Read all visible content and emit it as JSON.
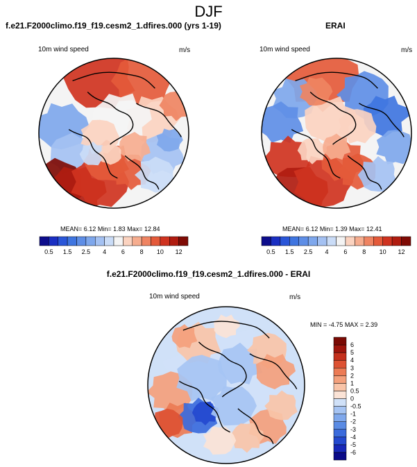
{
  "figure": {
    "title": "DJF"
  },
  "chart_data": [
    {
      "type": "heatmap",
      "projection": "north polar stereographic",
      "title": "f.e21.F2000climo.f19_f19.cesm2_1.dfires.000 (yrs 1-19)",
      "variable": "10m wind speed",
      "units": "m/s",
      "stats_labels": [
        "MEAN=",
        "Min=",
        "Max="
      ],
      "stats": [
        6.12,
        1.83,
        12.84
      ],
      "colorbar": {
        "orientation": "horizontal",
        "levels": [
          0.5,
          1,
          1.5,
          2,
          2.5,
          3,
          4,
          5,
          6,
          7,
          8,
          9,
          10,
          11,
          12
        ],
        "tick_labels": [
          "0.5",
          "1.5",
          "2.5",
          "4",
          "6",
          "8",
          "10",
          "12"
        ],
        "colors": [
          "#0d0d8c",
          "#1a2fc2",
          "#2a56d8",
          "#3f75e0",
          "#5e8ee6",
          "#7ea7ec",
          "#a4c1f2",
          "#cadcf7",
          "#f4f4f4",
          "#fbd3c0",
          "#f6ad8f",
          "#ef8462",
          "#e45a3a",
          "#cf3320",
          "#b01c10",
          "#7f0b05"
        ]
      }
    },
    {
      "type": "heatmap",
      "projection": "north polar stereographic",
      "title": "ERAI",
      "variable": "10m wind speed",
      "units": "m/s",
      "stats_labels": [
        "MEAN=",
        "Min=",
        "Max="
      ],
      "stats": [
        6.12,
        1.39,
        12.41
      ],
      "colorbar": {
        "orientation": "horizontal",
        "levels": [
          0.5,
          1,
          1.5,
          2,
          2.5,
          3,
          4,
          5,
          6,
          7,
          8,
          9,
          10,
          11,
          12
        ],
        "tick_labels": [
          "0.5",
          "1.5",
          "2.5",
          "4",
          "6",
          "8",
          "10",
          "12"
        ],
        "colors": [
          "#0d0d8c",
          "#1a2fc2",
          "#2a56d8",
          "#3f75e0",
          "#5e8ee6",
          "#7ea7ec",
          "#a4c1f2",
          "#cadcf7",
          "#f4f4f4",
          "#fbd3c0",
          "#f6ad8f",
          "#ef8462",
          "#e45a3a",
          "#cf3320",
          "#b01c10",
          "#7f0b05"
        ]
      }
    },
    {
      "type": "heatmap",
      "projection": "north polar stereographic",
      "title": "f.e21.F2000climo.f19_f19.cesm2_1.dfires.000 - ERAI",
      "variable": "10m wind speed",
      "units": "m/s",
      "stats_labels": [
        "MIN =",
        "MAX ="
      ],
      "stats": [
        -4.75,
        2.39
      ],
      "colorbar": {
        "orientation": "vertical",
        "levels": [
          -6,
          -5,
          -4,
          -3,
          -2,
          -1,
          -0.5,
          0,
          0.5,
          1,
          2,
          3,
          4,
          5,
          6
        ],
        "tick_labels": [
          "6",
          "5",
          "4",
          "3",
          "2",
          "1",
          "0.5",
          "0",
          "-0.5",
          "-1",
          "-2",
          "-3",
          "-4",
          "-5",
          "-6"
        ],
        "colors": [
          "#0a0a88",
          "#1727b8",
          "#2449cf",
          "#3b6bdc",
          "#5a8be4",
          "#7fa8ec",
          "#a6c4f3",
          "#d0e1f8",
          "#fbe3d6",
          "#f9c4a8",
          "#f4a07c",
          "#ec7b55",
          "#dd5233",
          "#c4301c",
          "#9e150c",
          "#7a0a04"
        ]
      }
    }
  ]
}
